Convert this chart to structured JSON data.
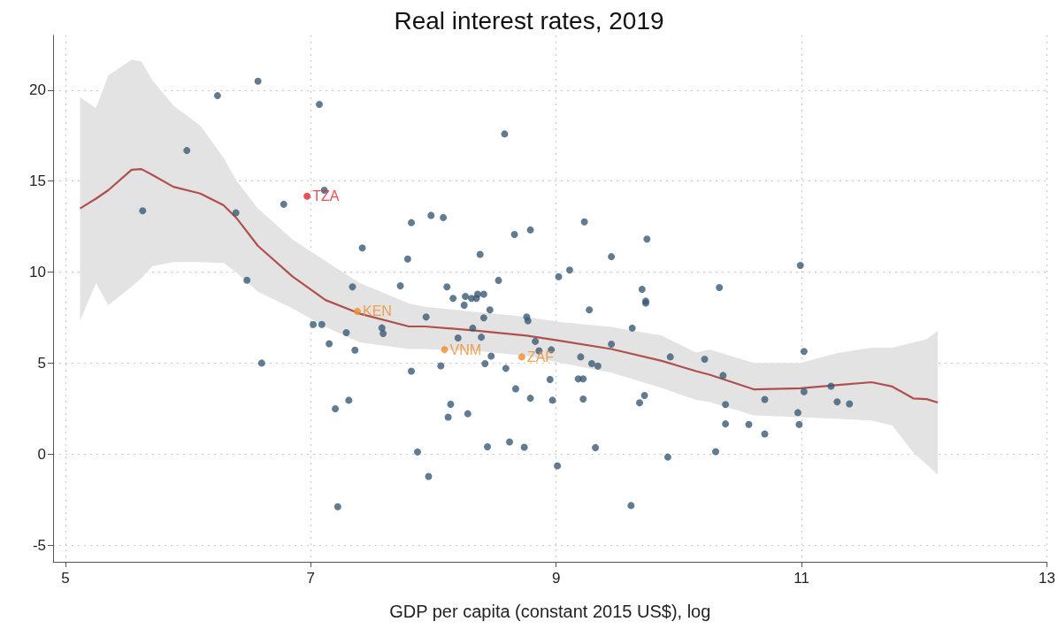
{
  "chart_data": {
    "type": "scatter",
    "title": "Real interest rates, 2019",
    "xlabel": "GDP per capita (constant 2015 US$), log",
    "xlim": [
      4.9,
      13
    ],
    "xticks": [
      5,
      7,
      9,
      11,
      13
    ],
    "ylim": [
      -5.9,
      23
    ],
    "yticks": [
      -5,
      0,
      5,
      10,
      15,
      20
    ],
    "grid": true,
    "series": [
      {
        "marker": "circle",
        "color": "#3a5a75",
        "x": [
          5.63,
          5.99,
          6.24,
          6.57,
          6.39,
          6.48,
          6.6,
          6.78,
          7.07,
          7.11,
          7.42,
          7.73,
          7.34,
          7.02,
          7.09,
          7.29,
          7.58,
          7.59,
          7.15,
          7.36,
          7.31,
          7.2,
          7.22,
          7.82,
          7.98,
          8.08,
          7.79,
          8.11,
          8.16,
          8.26,
          8.25,
          8.31,
          8.35,
          8.36,
          8.41,
          8.38,
          8.53,
          8.58,
          8.66,
          8.79,
          8.46,
          8.41,
          7.94,
          8.32,
          8.39,
          8.2,
          8.47,
          8.42,
          8.06,
          7.82,
          8.59,
          8.76,
          8.77,
          8.83,
          8.86,
          8.96,
          8.95,
          8.97,
          8.79,
          8.67,
          8.14,
          8.12,
          8.28,
          7.87,
          7.96,
          8.44,
          8.62,
          8.74,
          9.02,
          9.11,
          9.23,
          9.27,
          9.01,
          9.2,
          9.29,
          9.34,
          9.18,
          9.22,
          9.22,
          9.32,
          9.45,
          9.45,
          9.62,
          9.7,
          9.73,
          9.73,
          9.74,
          9.72,
          9.68,
          9.61,
          9.93,
          9.91,
          10.21,
          10.33,
          10.3,
          10.36,
          10.38,
          10.38,
          10.57,
          10.7,
          10.7,
          10.99,
          11.02,
          11.02,
          10.97,
          10.98,
          11.24,
          11.29,
          11.39
        ],
        "values": [
          13.37,
          16.68,
          19.69,
          20.49,
          13.26,
          9.56,
          5.01,
          13.73,
          19.21,
          14.5,
          11.33,
          9.25,
          9.19,
          7.13,
          7.13,
          6.68,
          6.94,
          6.63,
          6.07,
          5.72,
          2.97,
          2.5,
          -2.88,
          12.72,
          13.12,
          13.0,
          10.72,
          9.19,
          8.56,
          8.67,
          8.19,
          8.56,
          8.56,
          8.79,
          8.79,
          10.98,
          9.55,
          17.59,
          12.07,
          12.32,
          7.93,
          7.49,
          7.54,
          6.93,
          6.43,
          6.39,
          5.39,
          4.98,
          4.86,
          4.57,
          4.72,
          7.54,
          7.33,
          6.2,
          5.68,
          5.74,
          4.11,
          2.97,
          3.08,
          3.6,
          2.75,
          2.04,
          2.23,
          0.13,
          -1.21,
          0.41,
          0.68,
          0.39,
          9.75,
          10.12,
          12.76,
          7.93,
          -0.63,
          5.35,
          4.98,
          4.85,
          4.14,
          4.14,
          3.04,
          0.37,
          10.85,
          6.05,
          6.93,
          9.06,
          8.41,
          8.3,
          11.82,
          3.23,
          2.83,
          -2.81,
          5.35,
          -0.15,
          5.22,
          9.16,
          0.15,
          4.33,
          2.73,
          1.67,
          1.64,
          3.01,
          1.12,
          10.37,
          5.65,
          3.44,
          2.29,
          1.64,
          3.74,
          2.88,
          2.77
        ]
      },
      {
        "marker": "circle",
        "x": [
          6.97,
          7.38,
          8.09,
          8.72
        ],
        "values": [
          14.17,
          7.85,
          5.75,
          5.35
        ],
        "colors": [
          "#e8202a",
          "#f28c28",
          "#f28c28",
          "#f28c28"
        ]
      },
      {
        "type": "line",
        "marker": "none",
        "color": "#b0504e",
        "x": [
          5.12,
          5.25,
          5.35,
          5.54,
          5.62,
          5.71,
          5.88,
          6.1,
          6.29,
          6.4,
          6.57,
          6.85,
          7.12,
          7.4,
          7.8,
          7.93,
          8.34,
          8.76,
          9.03,
          9.45,
          9.86,
          10.14,
          10.25,
          10.61,
          10.99,
          11.3,
          11.57,
          11.74,
          11.91,
          12.02,
          12.11
        ],
        "values": [
          13.5,
          14.04,
          14.5,
          15.62,
          15.66,
          15.34,
          14.69,
          14.32,
          13.67,
          12.93,
          11.44,
          9.77,
          8.47,
          7.72,
          7.02,
          7.02,
          6.8,
          6.52,
          6.24,
          5.78,
          5.13,
          4.57,
          4.37,
          3.57,
          3.63,
          3.81,
          3.96,
          3.72,
          3.07,
          3.03,
          2.84
        ],
        "lower": [
          7.35,
          9.4,
          8.19,
          9.21,
          9.67,
          10.33,
          10.55,
          10.55,
          10.51,
          9.95,
          8.93,
          8.01,
          6.99,
          6.15,
          5.78,
          5.78,
          5.68,
          5.4,
          5.03,
          4.48,
          3.64,
          2.99,
          2.88,
          2.14,
          2.04,
          1.95,
          1.86,
          1.58,
          0.1,
          -0.56,
          -1.12
        ],
        "upper": [
          19.6,
          19.0,
          20.8,
          21.66,
          21.57,
          20.54,
          19.15,
          18.04,
          16.27,
          14.97,
          13.49,
          11.81,
          10.61,
          9.4,
          8.28,
          8.1,
          7.82,
          7.54,
          7.26,
          6.99,
          6.52,
          5.59,
          5.76,
          5.02,
          5.02,
          5.58,
          5.85,
          5.85,
          6.14,
          6.32,
          6.79
        ]
      }
    ],
    "annotations": [
      {
        "text": "TZA",
        "x": 6.97,
        "y": 14.17
      },
      {
        "text": "KEN",
        "x": 7.38,
        "y": 7.85
      },
      {
        "text": "VNM",
        "x": 8.09,
        "y": 5.75
      },
      {
        "text": "ZAF",
        "x": 8.72,
        "y": 5.35
      }
    ]
  }
}
